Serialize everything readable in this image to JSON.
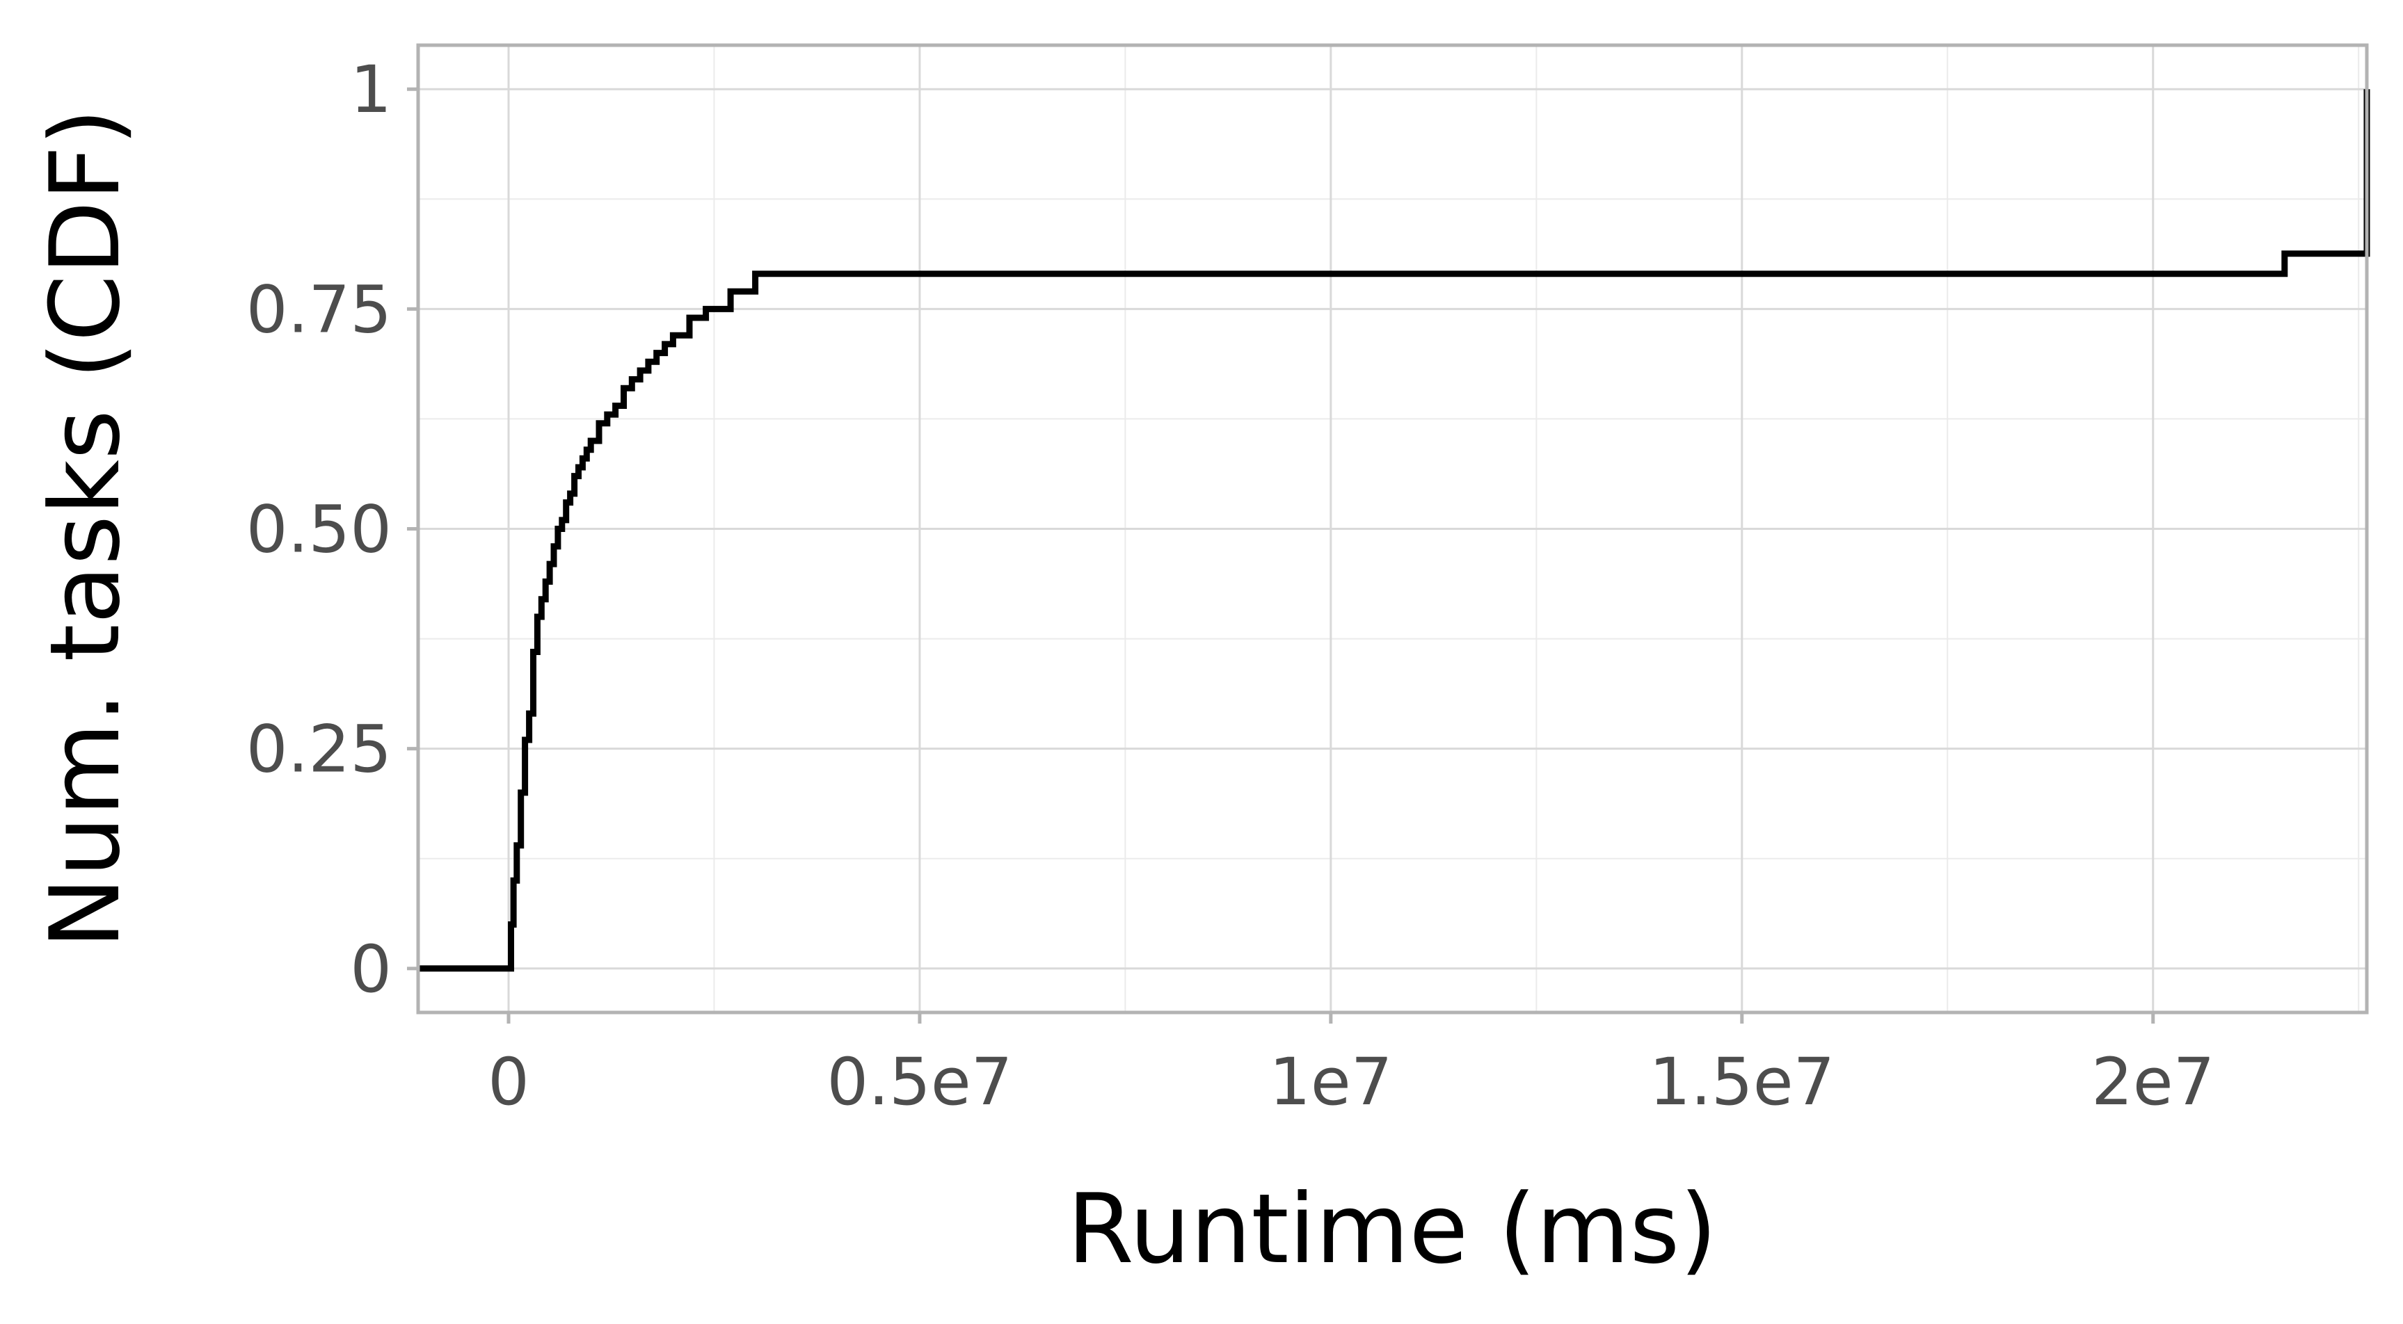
{
  "chart_data": {
    "type": "line",
    "subtype": "step-cdf",
    "title": "",
    "xlabel": "Runtime (ms)",
    "ylabel": "Num. tasks (CDF)",
    "xlim": [
      -1100000,
      22600000
    ],
    "ylim": [
      -0.05,
      1.05
    ],
    "xticks": [
      {
        "value": 0,
        "label": "0"
      },
      {
        "value": 5000000,
        "label": "0.5e7"
      },
      {
        "value": 10000000,
        "label": "1e7"
      },
      {
        "value": 15000000,
        "label": "1.5e7"
      },
      {
        "value": 20000000,
        "label": "2e7"
      }
    ],
    "yticks": [
      {
        "value": 0,
        "label": "0"
      },
      {
        "value": 0.25,
        "label": "0.25"
      },
      {
        "value": 0.5,
        "label": "0.50"
      },
      {
        "value": 0.75,
        "label": "0.75"
      },
      {
        "value": 1,
        "label": "1"
      }
    ],
    "grid": true,
    "legend": "none",
    "colors": {
      "line": "#000000",
      "grid_major": "#d9d9d9",
      "grid_minor": "#ebebeb",
      "panel_border": "#b3b3b3",
      "tick_text": "#4d4d4d"
    },
    "series": [
      {
        "x": [
          -1100000,
          30000,
          60000,
          100000,
          150000,
          200000,
          250000,
          300000,
          350000,
          400000,
          450000,
          500000,
          550000,
          600000,
          650000,
          700000,
          750000,
          800000,
          850000,
          900000,
          950000,
          1000000,
          1100000,
          1200000,
          1300000,
          1400000,
          1500000,
          1600000,
          1700000,
          1800000,
          1900000,
          2000000,
          2200000,
          2400000,
          2700000,
          3000000,
          21600000,
          22600000
        ],
        "y": [
          0,
          0.05,
          0.1,
          0.14,
          0.2,
          0.26,
          0.29,
          0.36,
          0.4,
          0.42,
          0.44,
          0.46,
          0.48,
          0.5,
          0.51,
          0.53,
          0.54,
          0.56,
          0.57,
          0.58,
          0.59,
          0.6,
          0.62,
          0.63,
          0.64,
          0.66,
          0.67,
          0.68,
          0.69,
          0.7,
          0.71,
          0.72,
          0.74,
          0.75,
          0.77,
          0.79,
          0.813,
          1
        ]
      }
    ]
  }
}
